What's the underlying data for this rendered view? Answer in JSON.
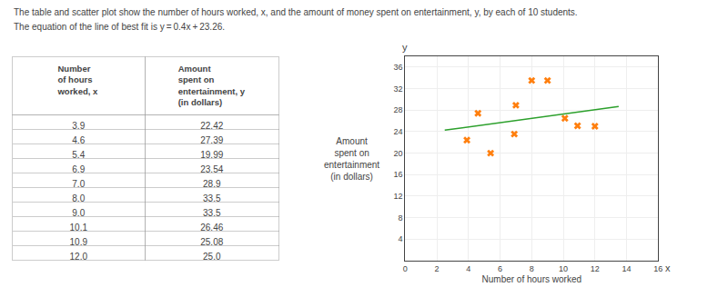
{
  "chart_data": [
    {
      "type": "table",
      "title": "The table and scatter plot show the number of hours worked, x, and the amount of money spent on entertainment, y, by each of 10 students.",
      "subtitle": "The equation of the line of best fit is y = 0.4x + 23.26.",
      "columns": [
        "Number\nof hours\nworked, x",
        "Amount\nspent on\nentertainment, y\n(in dollars)"
      ],
      "rows": [
        [
          "3.9",
          "22.42"
        ],
        [
          "4.6",
          "27.39"
        ],
        [
          "5.4",
          "19.99"
        ],
        [
          "6.9",
          "23.54"
        ],
        [
          "7.0",
          "28.9"
        ],
        [
          "8.0",
          "33.5"
        ],
        [
          "9.0",
          "33.5"
        ],
        [
          "10.1",
          "26.46"
        ],
        [
          "10.9",
          "25.08"
        ],
        [
          "12.0",
          "25.0"
        ]
      ]
    },
    {
      "type": "scatter",
      "xlabel": "Number of hours worked",
      "ylabel": "Amount\nspent on\nentertainment\n(in dollars)",
      "xlim": [
        0,
        16
      ],
      "ylim": [
        0,
        38
      ],
      "xticks": [
        0,
        2,
        4,
        6,
        8,
        10,
        12,
        14,
        16
      ],
      "yticks": [
        4,
        8,
        12,
        16,
        20,
        24,
        28,
        32,
        36
      ],
      "grid": true,
      "annotations": [
        {
          "text": "y",
          "axis": "y"
        },
        {
          "text": "x",
          "axis": "x"
        }
      ],
      "series": [
        {
          "type": "scatter",
          "marker": "x",
          "x": [
            3.9,
            4.6,
            5.4,
            6.9,
            7.0,
            8.0,
            9.0,
            10.1,
            10.9,
            12.0
          ],
          "values": [
            22.42,
            27.39,
            19.99,
            23.54,
            28.9,
            33.5,
            33.5,
            26.46,
            25.08,
            25.0
          ]
        },
        {
          "type": "line",
          "line_style": "solid",
          "x": [
            2.5,
            13.5
          ],
          "values": [
            24.26,
            28.66
          ]
        }
      ]
    }
  ]
}
